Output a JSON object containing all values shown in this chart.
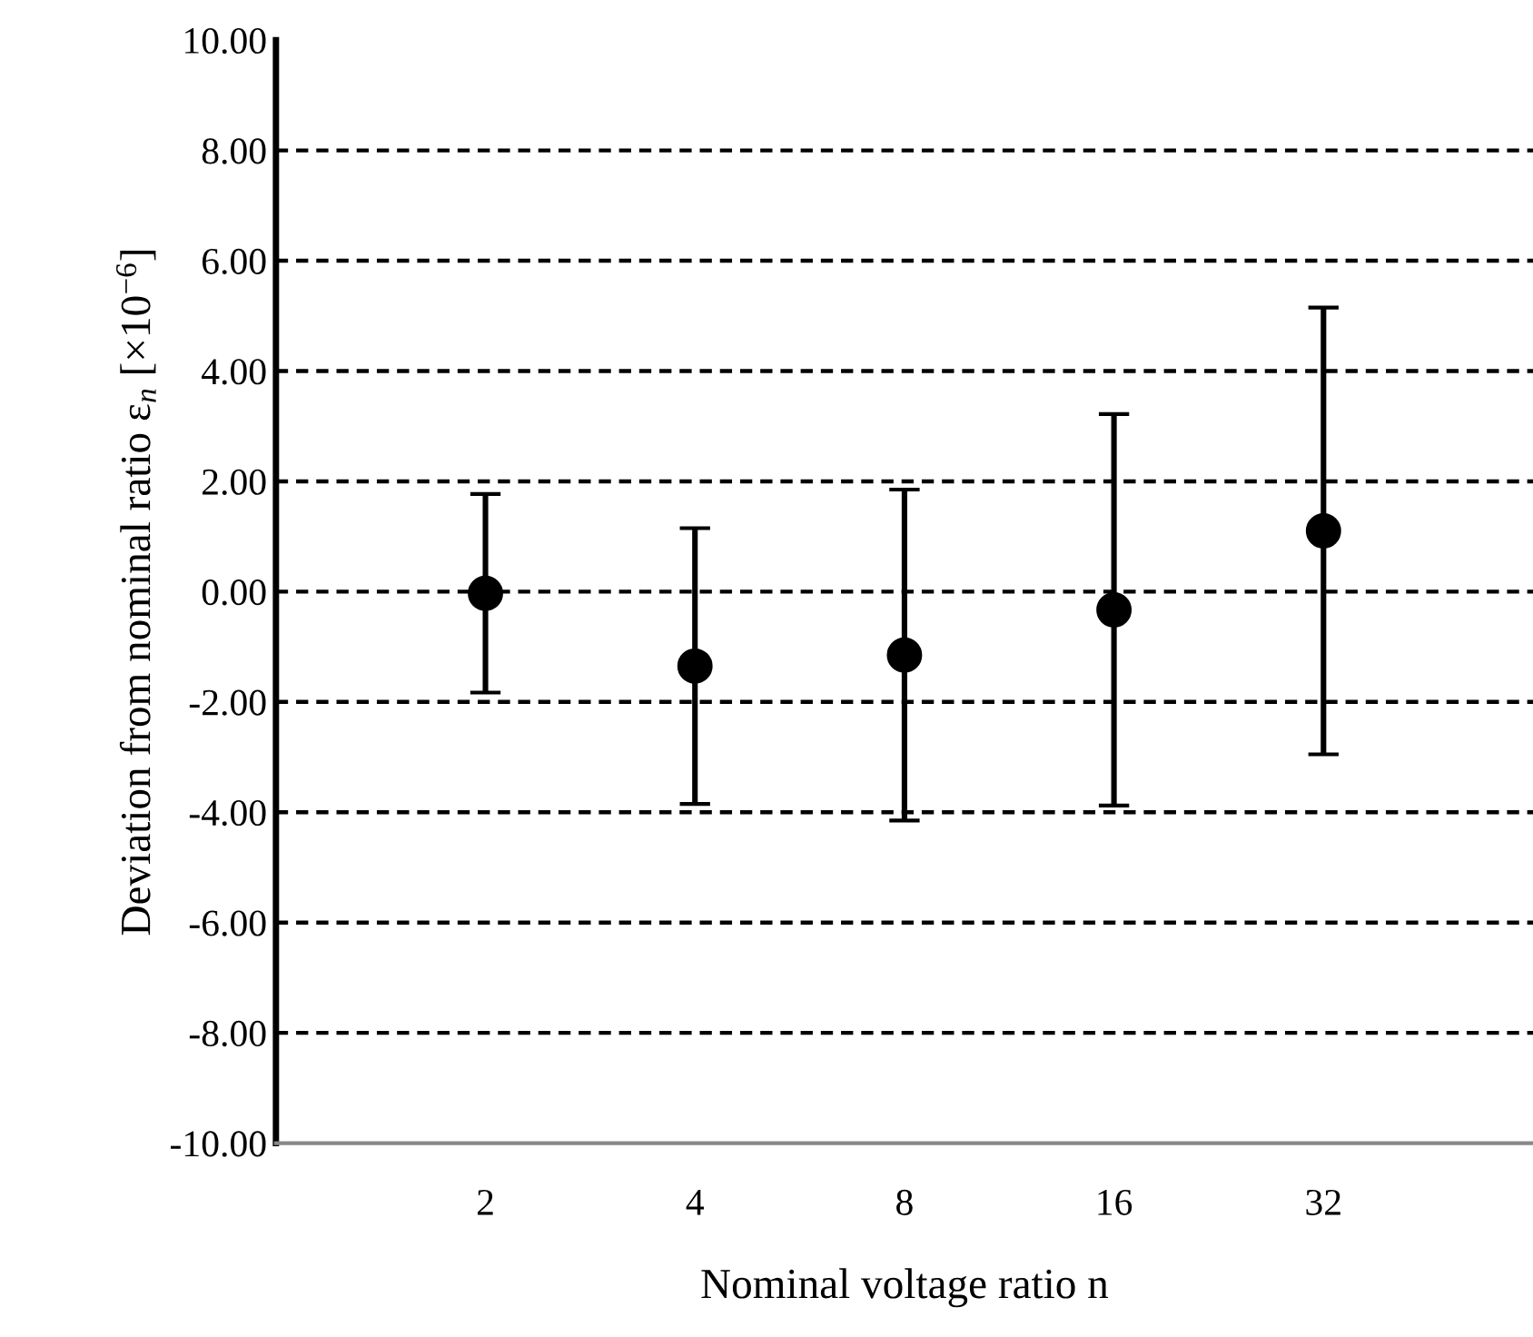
{
  "chart_data": {
    "type": "scatter",
    "xlabel": "Nominal voltage ratio n",
    "ylabel": "Deviation from nominal ratio ε$_{n}$ [×10$^{−6}$]",
    "categories": [
      "2",
      "4",
      "8",
      "16",
      "32"
    ],
    "series": [
      {
        "color": "#000000",
        "values": [
          -0.03,
          -1.35,
          -1.15,
          -0.33,
          1.1
        ],
        "errors": [
          1.8,
          2.5,
          3.0,
          3.55,
          4.05
        ]
      }
    ],
    "ylim": [
      -10,
      10
    ],
    "yticks": [
      {
        "value": -10,
        "label": "-10.00"
      },
      {
        "value": -8,
        "label": "-8.00"
      },
      {
        "value": -6,
        "label": "-6.00"
      },
      {
        "value": -4,
        "label": "-4.00"
      },
      {
        "value": -2,
        "label": "-2.00"
      },
      {
        "value": 0,
        "label": "0.00"
      },
      {
        "value": 2,
        "label": "2.00"
      },
      {
        "value": 4,
        "label": "4.00"
      },
      {
        "value": 6,
        "label": "6.00"
      },
      {
        "value": 8,
        "label": "8.00"
      },
      {
        "value": 10,
        "label": "10.00"
      }
    ],
    "grid": "y",
    "marker": "circle",
    "legend": false
  }
}
